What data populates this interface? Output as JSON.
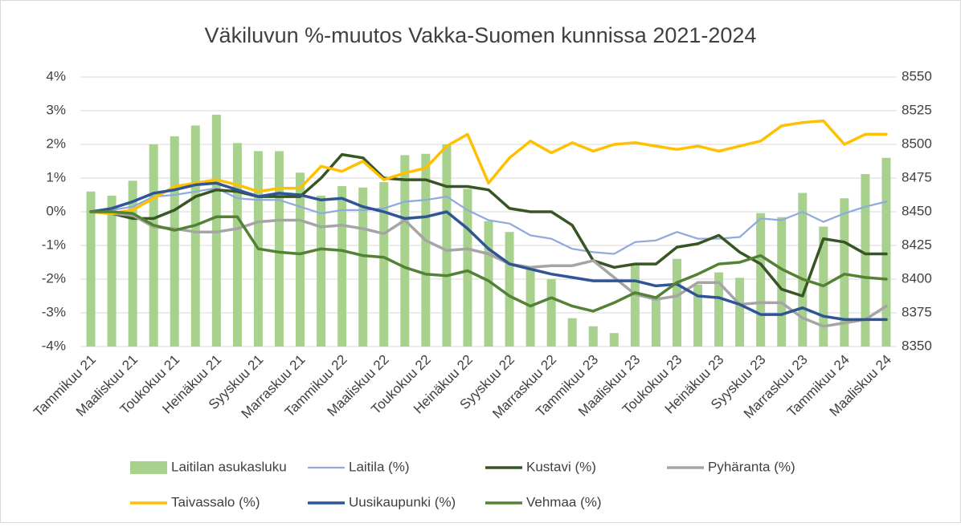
{
  "chart_data": {
    "type": "line",
    "title": "Väkiluvun %-muutos Vakka-Suomen kunnissa 2021-2024",
    "categories": [
      "Tammikuu 21",
      null,
      "Maaliskuu 21",
      null,
      "Toukokuu 21",
      null,
      "Heinäkuu 21",
      null,
      "Syyskuu 21",
      null,
      "Marraskuu 21",
      null,
      "Tammikuu 22",
      null,
      "Maaliskuu 22",
      null,
      "Toukokuu 22",
      null,
      "Heinäkuu 22",
      null,
      "Syyskuu 22",
      null,
      "Marraskuu 22",
      null,
      "Tammikuu 23",
      null,
      "Maaliskuu 23",
      null,
      "Toukokuu 23",
      null,
      "Heinäkuu 23",
      null,
      "Syyskuu 23",
      null,
      "Marraskuu 23",
      null,
      "Tammikuu 24",
      null,
      "Maaliskuu 24"
    ],
    "ylim": [
      -4,
      4
    ],
    "yticks": [
      {
        "value": -4,
        "label": "-4%"
      },
      {
        "value": -3,
        "label": "-3%"
      },
      {
        "value": -2,
        "label": "-2%"
      },
      {
        "value": -1,
        "label": "-1%"
      },
      {
        "value": 0,
        "label": "0%"
      },
      {
        "value": 1,
        "label": "1%"
      },
      {
        "value": 2,
        "label": "2%"
      },
      {
        "value": 3,
        "label": "3%"
      },
      {
        "value": 4,
        "label": "4%"
      }
    ],
    "y2lim": [
      8350,
      8550
    ],
    "y2ticks": [
      8350,
      8375,
      8400,
      8425,
      8450,
      8475,
      8500,
      8525,
      8550
    ],
    "legend": "bottom",
    "series": [
      {
        "name": "Laitilan asukasluku",
        "type": "bar",
        "axis": "y2",
        "color": "#a9d18e",
        "values": [
          8465,
          8462,
          8473,
          8500,
          8506,
          8514,
          8522,
          8501,
          8495,
          8495,
          8479,
          8462,
          8469,
          8468,
          8472,
          8492,
          8493,
          8500,
          8467,
          8443,
          8435,
          8408,
          8400,
          8371,
          8365,
          8360,
          8411,
          8387,
          8415,
          8396,
          8405,
          8401,
          8449,
          8446,
          8464,
          8439,
          8460,
          8478,
          8490
        ]
      },
      {
        "name": "Laitila (%)",
        "type": "line",
        "color": "#8faadc",
        "values": [
          0,
          0.05,
          0.15,
          0.45,
          0.5,
          0.6,
          0.7,
          0.4,
          0.35,
          0.35,
          0.15,
          -0.05,
          0.05,
          0.05,
          0.1,
          0.3,
          0.35,
          0.45,
          0.05,
          -0.25,
          -0.35,
          -0.7,
          -0.8,
          -1.1,
          -1.2,
          -1.25,
          -0.9,
          -0.85,
          -0.6,
          -0.8,
          -0.8,
          -0.75,
          -0.2,
          -0.25,
          0,
          -0.3,
          -0.05,
          0.15,
          0.3
        ]
      },
      {
        "name": "Kustavi (%)",
        "type": "line",
        "color": "#375623",
        "values": [
          0,
          -0.05,
          -0.2,
          -0.2,
          0.05,
          0.45,
          0.65,
          0.6,
          0.45,
          0.45,
          0.45,
          1.0,
          1.7,
          1.6,
          1.0,
          0.95,
          0.95,
          0.75,
          0.75,
          0.65,
          0.1,
          0,
          0,
          -0.4,
          -1.45,
          -1.65,
          -1.55,
          -1.55,
          -1.05,
          -0.95,
          -0.7,
          -1.2,
          -1.55,
          -2.3,
          -2.5,
          -0.8,
          -0.9,
          -1.25,
          -1.25
        ]
      },
      {
        "name": "Pyhäranta (%)",
        "type": "line",
        "color": "#a5a5a5",
        "values": [
          0,
          -0.05,
          -0.1,
          -0.45,
          -0.5,
          -0.6,
          -0.6,
          -0.5,
          -0.3,
          -0.25,
          -0.25,
          -0.45,
          -0.4,
          -0.5,
          -0.65,
          -0.25,
          -0.85,
          -1.15,
          -1.1,
          -1.25,
          -1.55,
          -1.65,
          -1.6,
          -1.6,
          -1.45,
          -1.95,
          -2.45,
          -2.6,
          -2.5,
          -2.1,
          -2.1,
          -2.75,
          -2.7,
          -2.7,
          -3.15,
          -3.4,
          -3.3,
          -3.2,
          -2.8
        ]
      },
      {
        "name": "Taivassalo (%)",
        "type": "line",
        "color": "#ffc000",
        "values": [
          0,
          -0.05,
          0.05,
          0.4,
          0.75,
          0.85,
          0.95,
          0.8,
          0.6,
          0.7,
          0.7,
          1.35,
          1.2,
          1.5,
          0.95,
          1.15,
          1.3,
          1.95,
          2.3,
          0.85,
          1.6,
          2.1,
          1.75,
          2.05,
          1.8,
          2.0,
          2.05,
          1.95,
          1.85,
          1.95,
          1.8,
          1.95,
          2.1,
          2.55,
          2.65,
          2.7,
          2.0,
          2.3,
          2.3
        ]
      },
      {
        "name": "Uusikaupunki (%)",
        "type": "line",
        "color": "#2f5597",
        "values": [
          0,
          0.1,
          0.3,
          0.55,
          0.65,
          0.8,
          0.85,
          0.65,
          0.45,
          0.55,
          0.5,
          0.35,
          0.4,
          0.15,
          0,
          -0.2,
          -0.15,
          0,
          -0.5,
          -1.1,
          -1.55,
          -1.7,
          -1.85,
          -1.95,
          -2.05,
          -2.05,
          -2.05,
          -2.2,
          -2.15,
          -2.5,
          -2.55,
          -2.75,
          -3.05,
          -3.05,
          -2.85,
          -3.1,
          -3.2,
          -3.2,
          -3.2
        ]
      },
      {
        "name": "Vehmaa (%)",
        "type": "line",
        "color": "#548235",
        "values": [
          0,
          0,
          -0.05,
          -0.4,
          -0.55,
          -0.4,
          -0.15,
          -0.15,
          -1.1,
          -1.2,
          -1.25,
          -1.1,
          -1.15,
          -1.3,
          -1.35,
          -1.65,
          -1.85,
          -1.9,
          -1.75,
          -2.05,
          -2.5,
          -2.8,
          -2.55,
          -2.8,
          -2.95,
          -2.7,
          -2.4,
          -2.55,
          -2.1,
          -1.85,
          -1.55,
          -1.5,
          -1.3,
          -1.7,
          -2.0,
          -2.2,
          -1.85,
          -1.95,
          -2.0
        ]
      }
    ]
  }
}
